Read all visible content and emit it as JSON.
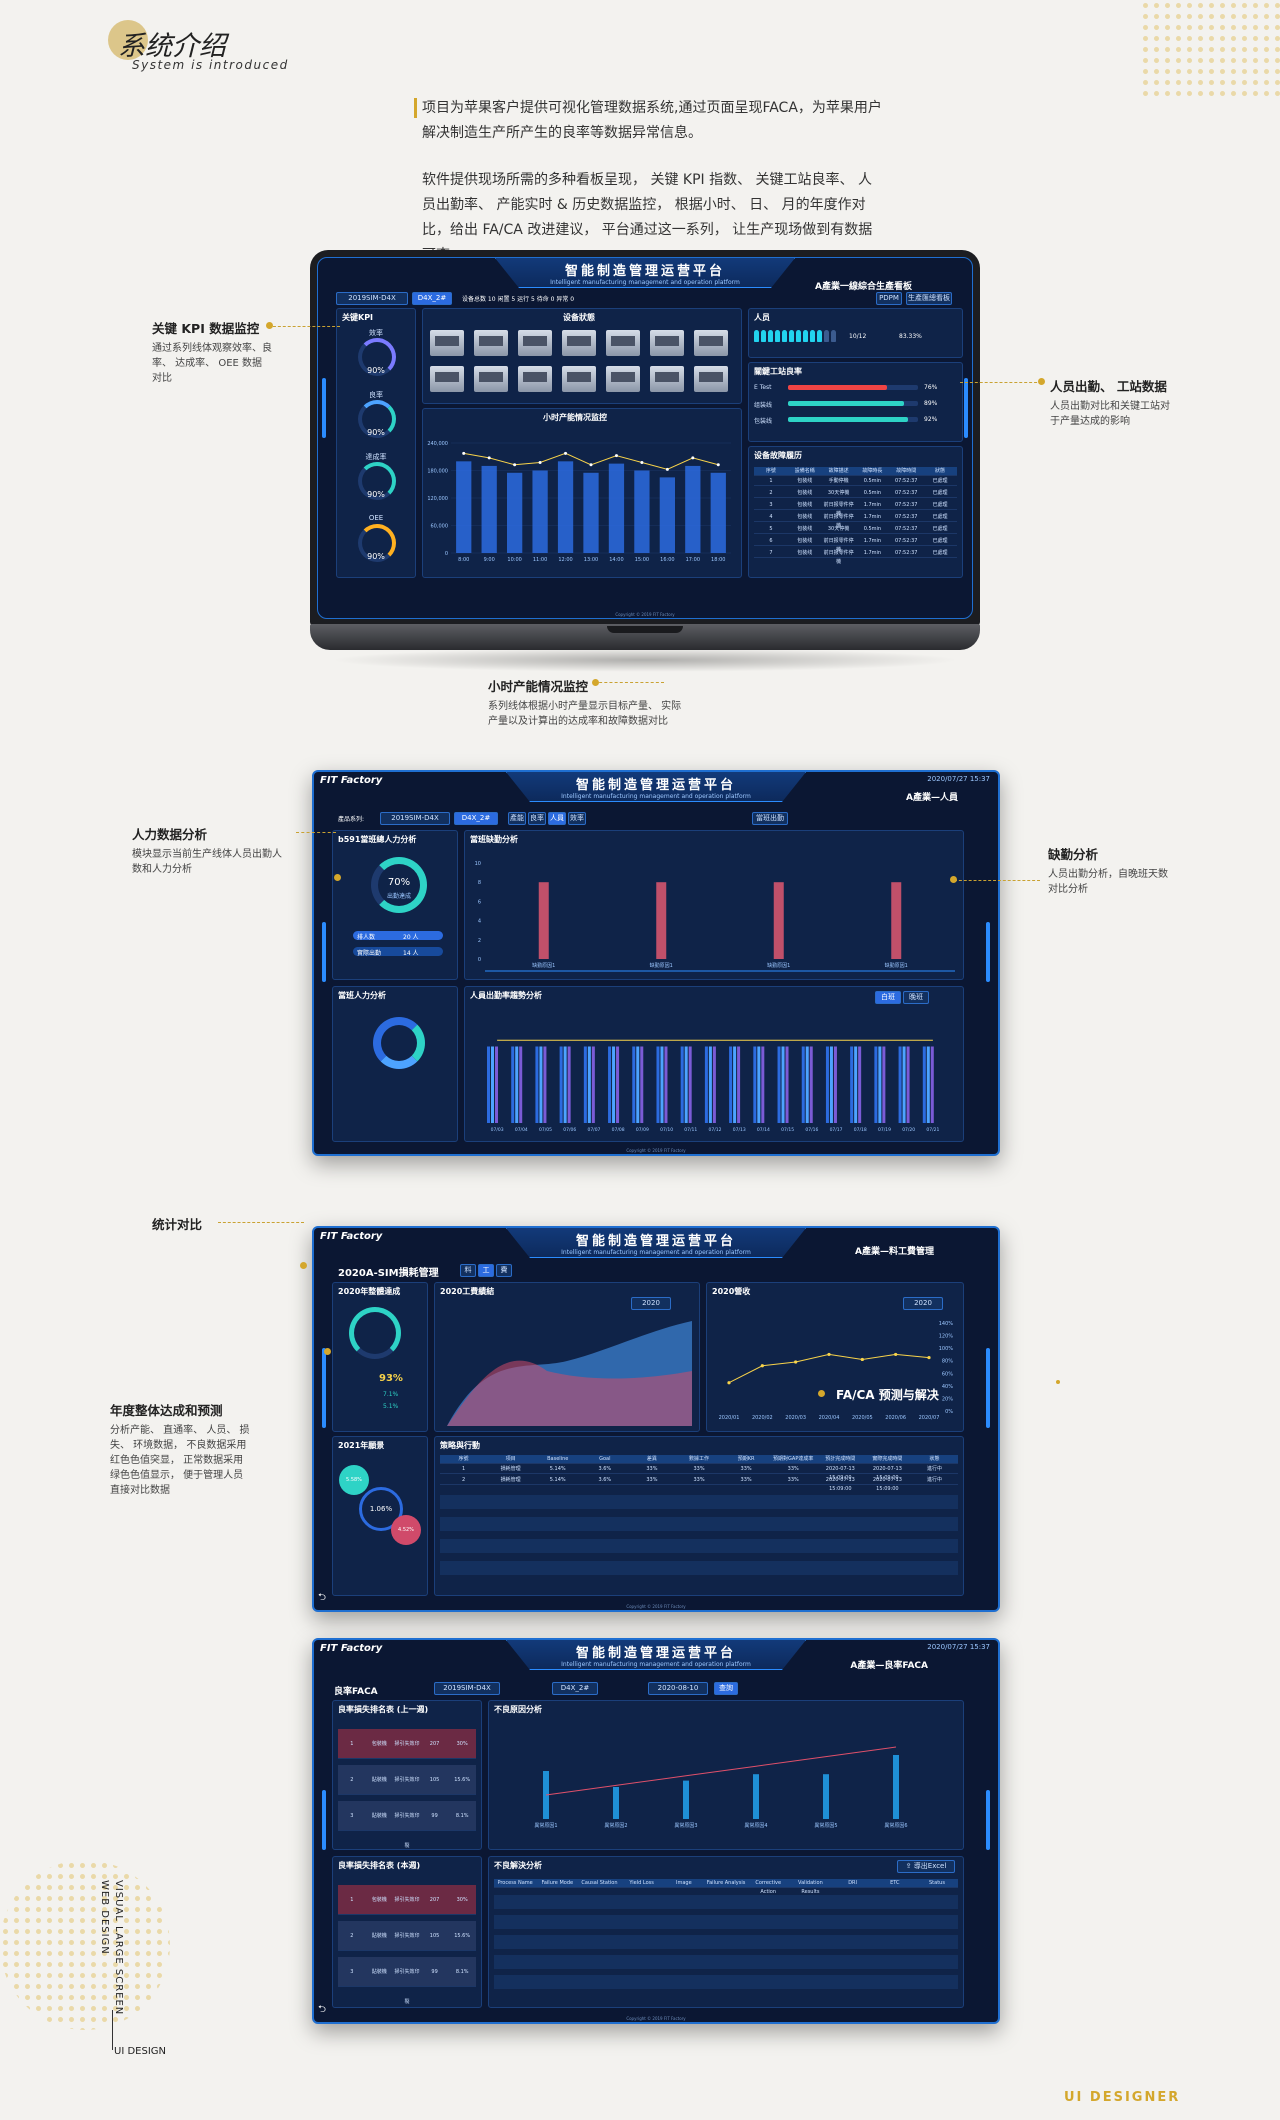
{
  "intro": {
    "title": "系统介绍",
    "subtitle": "System is introduced",
    "para1": "项目为苹果客户提供可视化管理数据系统,通过页面呈现FACA，为苹果用户解决制造生产所产生的良率等数据异常信息。",
    "para2": "软件提供现场所需的多种看板呈现， 关键 KPI 指数、 关键工站良率、 人员出勤率、 产能实时 & 历史数据监控， 根据小时、 日、 月的年度作对比，给出 FA/CA 改进建议， 平台通过这一系列， 让生产现场做到有数据可查。"
  },
  "annotations": {
    "kpi": {
      "title": "关键 KPI 数据监控",
      "desc": "通过系列线体观察效率、良率、 达成率、 OEE 数据对比"
    },
    "staff": {
      "title": "人员出勤、 工站数据",
      "desc": "人员出勤对比和关键工站对于产量达成的影响"
    },
    "hourly": {
      "title": "小时产能情况监控",
      "desc": "系列线体根据小时产量显示目标产量、 实际产量以及计算出的达成率和故障数据对比"
    },
    "manpower": {
      "title": "人力数据分析",
      "desc": "模块显示当前生产线体人员出勤人数和人力分析"
    },
    "absence": {
      "title": "缺勤分析",
      "desc": "人员出勤分析，自晚班天数对比分析"
    },
    "compare": {
      "title": "统计对比"
    },
    "annual": {
      "title": "年度整体达成和预测",
      "desc": "分析产能、 直通率、 人员、 损失、 环境数据， 不良数据采用红色色值突显， 正常数据采用绿色色值显示， 便于管理人员直接对比数据"
    },
    "faca": {
      "title": "FA/CA 预测与解决"
    }
  },
  "platform": {
    "title": "智能制造管理运营平台",
    "subtitle": "Intelligent manufacturing management and operation platform",
    "logo": "FIT Factory",
    "date": "2020/07/27 15:37"
  },
  "s1": {
    "subtitle": "A產業一線綜合生產看板",
    "series": "2019SIM-D4X",
    "line": "D4X_2#",
    "stats": "设备总数 10  闲置 5  运行 5  待命 0  异常 0",
    "kpi_title": "关键KPI",
    "gauges": [
      {
        "label": "效率",
        "value": "90%"
      },
      {
        "label": "良率",
        "value": "90%"
      },
      {
        "label": "達成率",
        "value": "90%"
      },
      {
        "label": "OEE",
        "value": "90%"
      }
    ],
    "equip_title": "设备狀態",
    "person_title": "人员",
    "person_value": "10/12",
    "person_rate": "83.33%",
    "yield_title": "關鍵工站良率",
    "yield": [
      {
        "name": "E Test",
        "value": "76%",
        "pct": 76
      },
      {
        "name": "组装线",
        "value": "89%",
        "pct": 89
      },
      {
        "name": "包装线",
        "value": "92%",
        "pct": 92
      }
    ],
    "hourly_title": "小时产能情况监控",
    "hours": [
      "8:00",
      "9:00",
      "10:00",
      "11:00",
      "12:00",
      "13:00",
      "14:00",
      "15:00",
      "16:00",
      "17:00",
      "18:00"
    ],
    "fault_title": "设备故障履历",
    "fault_rows": [
      [
        "1",
        "包装线",
        "手動停機",
        "0.5min",
        "07:52:37",
        "已處理"
      ],
      [
        "2",
        "包装线",
        "30天停機",
        "0.5min",
        "07:52:37",
        "已處理"
      ],
      [
        "3",
        "包装线",
        "前日报零件停機",
        "1.7min",
        "07:52:37",
        "已處理"
      ],
      [
        "4",
        "包装线",
        "前日报零件停機",
        "1.7min",
        "07:52:37",
        "已處理"
      ],
      [
        "5",
        "包装线",
        "30天停機",
        "0.5min",
        "07:52:37",
        "已處理"
      ],
      [
        "6",
        "包装线",
        "前日报零件停機",
        "1.7min",
        "07:52:37",
        "已處理"
      ],
      [
        "7",
        "包装线",
        "前日报零件停機",
        "1.7min",
        "07:52:37",
        "已處理"
      ]
    ]
  },
  "s2": {
    "subtitle": "A產業—人員",
    "series_label": "產品系列:",
    "series": "2019SIM-D4X",
    "line": "D4X_2#",
    "tabs": [
      "產能",
      "良率",
      "人員",
      "效率"
    ],
    "attend_btn": "當班出勤",
    "p1_title": "b591當班總人力分析",
    "donut_val": "70%",
    "donut_lbl": "出勤達成",
    "shift_a": "排人数",
    "shift_a_v": "20 人",
    "shift_b": "實際出勤",
    "shift_b_v": "14 人",
    "p2_title": "當班缺勤分析",
    "p3_title": "當班人力分析",
    "p4_title": "人員出勤率趨勢分析",
    "abs_cats": [
      "缺勤原因1",
      "缺勤原因1",
      "缺勤原因1",
      "缺勤原因1"
    ],
    "toggle": [
      "白班",
      "晚班"
    ],
    "days": [
      "07/03",
      "07/04",
      "07/05",
      "07/06",
      "07/07",
      "07/08",
      "07/09",
      "07/10",
      "07/11",
      "07/12",
      "07/13",
      "07/14",
      "07/15",
      "07/16",
      "07/17",
      "07/18",
      "07/19",
      "07/20",
      "07/21"
    ]
  },
  "s3": {
    "subtitle": "A產業—料工費管理",
    "title": "2020A-SIM損耗管理",
    "tabs": [
      "料",
      "工",
      "費"
    ],
    "p1": "2020年整體達成",
    "p1_rate": "93%",
    "p1_a": "7.1%",
    "p1_b": "5.1%",
    "p2": "2021年願景",
    "p2_a": "5.58%",
    "p2_b": "1.06%",
    "p2_c": "4.52%",
    "p3": "2020工費績結",
    "p4": "2020營收",
    "year": "2020",
    "p5": "策略與行動",
    "cols": [
      "序號",
      "項目",
      "Baseline",
      "Goal",
      "差異",
      "數據工作",
      "預期KR",
      "預期對GAP達成率",
      "預計完成時間",
      "實際完成時間",
      "狀態"
    ],
    "rows": [
      [
        "1",
        "損耗管理",
        "5.14%",
        "3.6%",
        "33%",
        "33%",
        "33%",
        "33%",
        "2020-07-13 15:09:00",
        "2020-07-13 15:09:00",
        "進行中"
      ],
      [
        "2",
        "損耗管理",
        "5.14%",
        "3.6%",
        "33%",
        "33%",
        "33%",
        "33%",
        "2020-07-13 15:09:00",
        "2020-07-13 15:09:00",
        "進行中"
      ]
    ]
  },
  "s4": {
    "subtitle": "A產業—良率FACA",
    "label": "良率FACA",
    "series": "2019SIM-D4X",
    "line": "D4X_2#",
    "date": "2020-08-10",
    "query": "查詢",
    "p1": "良率損失排名表 (上一週)",
    "p2": "良率損失排名表 (本週)",
    "p3": "不良原因分析",
    "p4": "不良解決分析",
    "export": "導出Excel",
    "rank": [
      [
        "1",
        "包裝機",
        "掃引失效印裂",
        "207",
        "30%"
      ],
      [
        "2",
        "貼裝機",
        "掃引失效印裂",
        "105",
        "15.6%"
      ],
      [
        "3",
        "貼裝機",
        "掃引失效印裂",
        "99",
        "8.1%"
      ]
    ],
    "cols": [
      "Process Name",
      "Failure Mode",
      "Causal Station",
      "Yield Loss",
      "Image",
      "Failure Analysis",
      "Corrective Action",
      "Validation Results",
      "DRI",
      "ETC",
      "Status"
    ]
  },
  "side": {
    "vertical1": "WEB DESIGN",
    "vertical2": "VISUAL LARGE SCREEN",
    "bottom_left": "UI DESIGN",
    "bottom_right": "UI DESIGNER"
  },
  "chart_data": [
    {
      "type": "bar",
      "title": "小时产能情况监控",
      "categories": [
        "8:00",
        "9:00",
        "10:00",
        "11:00",
        "12:00",
        "13:00",
        "14:00",
        "15:00",
        "16:00",
        "17:00",
        "18:00"
      ],
      "series": [
        {
          "name": "實際產量",
          "values": [
            200000,
            190000,
            175000,
            180000,
            200000,
            175000,
            195000,
            180000,
            165000,
            190000,
            175000
          ]
        }
      ],
      "ylim": [
        0,
        240000
      ]
    },
    {
      "type": "bar",
      "title": "當班缺勤分析",
      "categories": [
        "缺勤原因1",
        "缺勤原因1",
        "缺勤原因1",
        "缺勤原因1"
      ],
      "values": [
        8,
        8,
        8,
        8
      ],
      "ylim": [
        0,
        10
      ]
    },
    {
      "type": "line",
      "title": "2020營收",
      "x": [
        "2020/01",
        "2020/02",
        "2020/03",
        "2020/04",
        "2020/05",
        "2020/06",
        "2020/07"
      ],
      "values": [
        0.45,
        0.72,
        0.78,
        0.9,
        0.82,
        0.9,
        0.85
      ],
      "ylim": [
        0,
        1.4
      ]
    },
    {
      "type": "bar",
      "title": "不良原因分析",
      "categories": [
        "異常原因1",
        "異常原因2",
        "異常原因3",
        "異常原因4",
        "異常原因5",
        "異常原因6"
      ],
      "values": [
        30,
        20,
        24,
        28,
        28,
        40
      ]
    }
  ]
}
